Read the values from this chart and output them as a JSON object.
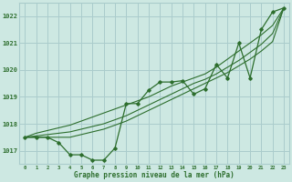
{
  "hours": [
    0,
    1,
    2,
    3,
    4,
    5,
    6,
    7,
    8,
    9,
    10,
    11,
    12,
    13,
    14,
    15,
    16,
    17,
    18,
    19,
    20,
    21,
    22,
    23
  ],
  "series_main": [
    1017.5,
    1017.5,
    1017.5,
    1017.3,
    1016.85,
    1016.85,
    1016.65,
    1016.65,
    1017.1,
    1018.75,
    1018.75,
    1019.25,
    1019.55,
    1019.55,
    1019.6,
    1019.1,
    1019.3,
    1020.2,
    1019.7,
    1021.0,
    1019.7,
    1021.5,
    1022.15,
    1022.3
  ],
  "series_upper": [
    1017.5,
    1017.65,
    1017.75,
    1017.85,
    1017.95,
    1018.1,
    1018.25,
    1018.4,
    1018.55,
    1018.7,
    1018.85,
    1019.0,
    1019.2,
    1019.4,
    1019.55,
    1019.7,
    1019.85,
    1020.1,
    1020.4,
    1020.7,
    1021.0,
    1021.3,
    1021.65,
    1022.3
  ],
  "series_lower": [
    1017.5,
    1017.5,
    1017.5,
    1017.5,
    1017.5,
    1017.6,
    1017.7,
    1017.8,
    1017.95,
    1018.1,
    1018.3,
    1018.5,
    1018.7,
    1018.9,
    1019.1,
    1019.3,
    1019.5,
    1019.7,
    1019.9,
    1020.15,
    1020.4,
    1020.7,
    1021.05,
    1022.3
  ],
  "series_mid": [
    1017.5,
    1017.55,
    1017.6,
    1017.65,
    1017.7,
    1017.8,
    1017.9,
    1018.0,
    1018.15,
    1018.3,
    1018.5,
    1018.7,
    1018.9,
    1019.1,
    1019.3,
    1019.5,
    1019.65,
    1019.85,
    1020.1,
    1020.35,
    1020.65,
    1020.95,
    1021.35,
    1022.3
  ],
  "bg_color": "#cde8e2",
  "grid_color": "#aacccc",
  "line_color": "#2d6e2d",
  "xlabel_label": "Graphe pression niveau de la mer (hPa)",
  "ylim_min": 1016.5,
  "ylim_max": 1022.5,
  "yticks": [
    1017,
    1018,
    1019,
    1020,
    1021,
    1022
  ]
}
